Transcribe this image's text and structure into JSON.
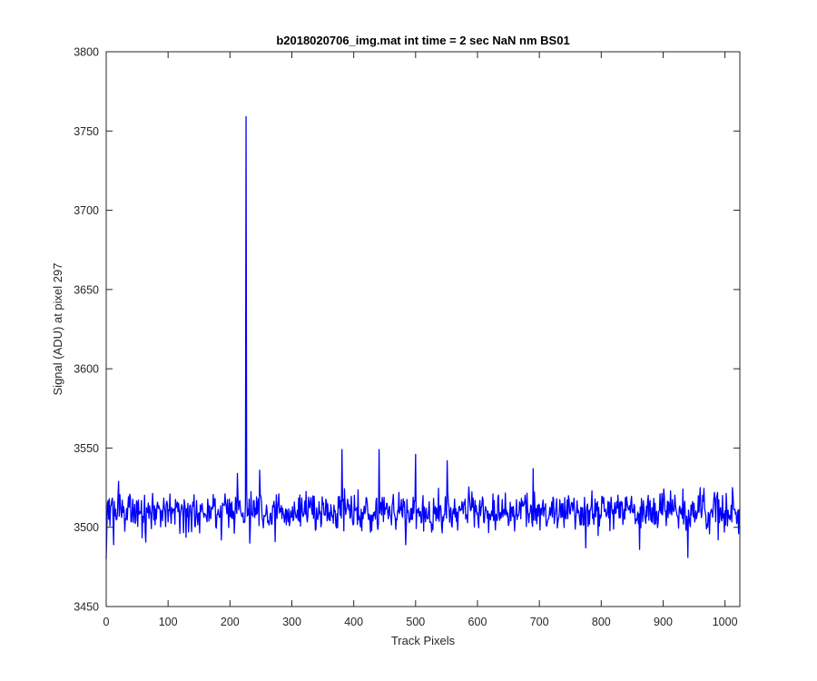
{
  "chart_data": {
    "type": "line",
    "title": "b2018020706_img.mat int time = 2 sec  NaN nm BS01",
    "xlabel": "Track Pixels",
    "ylabel": "Signal (ADU) at pixel 297",
    "xlim": [
      0,
      1024
    ],
    "ylim": [
      3450,
      3800
    ],
    "xticks": [
      0,
      100,
      200,
      300,
      400,
      500,
      600,
      700,
      800,
      900,
      1000
    ],
    "yticks": [
      3450,
      3500,
      3550,
      3600,
      3650,
      3700,
      3750,
      3800
    ],
    "grid": false,
    "line_color": "#0000ff",
    "series": [
      {
        "baseline": 3510,
        "noise_amplitude": 10,
        "x_start": 0,
        "x_end": 1023,
        "points": [
          {
            "x": 0,
            "y": 3480
          },
          {
            "x": 5,
            "y": 3518
          },
          {
            "x": 12,
            "y": 3489
          },
          {
            "x": 20,
            "y": 3529
          },
          {
            "x": 186,
            "y": 3492
          },
          {
            "x": 212,
            "y": 3534
          },
          {
            "x": 226,
            "y": 3759
          },
          {
            "x": 228,
            "y": 3507
          },
          {
            "x": 232,
            "y": 3490
          },
          {
            "x": 248,
            "y": 3536
          },
          {
            "x": 273,
            "y": 3491
          },
          {
            "x": 381,
            "y": 3549
          },
          {
            "x": 441,
            "y": 3549
          },
          {
            "x": 500,
            "y": 3546
          },
          {
            "x": 484,
            "y": 3489
          },
          {
            "x": 551,
            "y": 3542
          },
          {
            "x": 690,
            "y": 3537
          },
          {
            "x": 775,
            "y": 3487
          },
          {
            "x": 862,
            "y": 3486
          },
          {
            "x": 940,
            "y": 3481
          },
          {
            "x": 1012,
            "y": 3525
          },
          {
            "x": 1022,
            "y": 3496
          }
        ]
      }
    ]
  }
}
